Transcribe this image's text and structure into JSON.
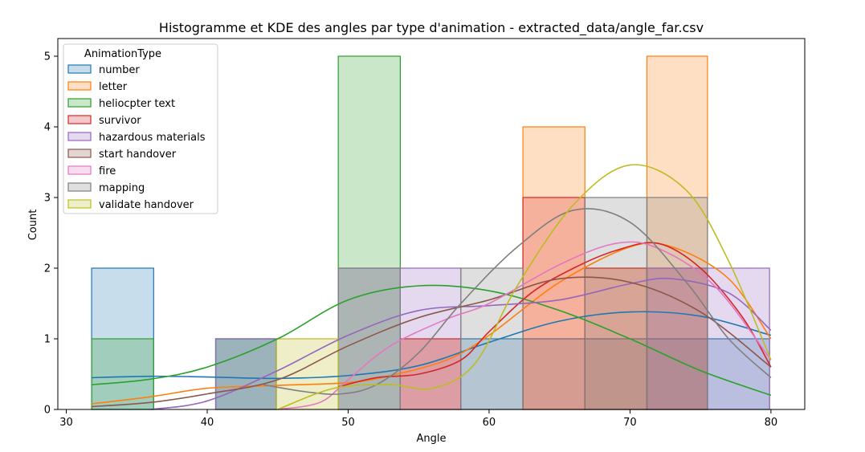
{
  "chart_data": {
    "type": "histogram",
    "title": "Histogramme et KDE des angles par type d'animation - extracted_data/angle_far.csv",
    "xlabel": "Angle",
    "ylabel": "Count",
    "xlim": [
      29.4,
      82.4
    ],
    "ylim": [
      0,
      5.25
    ],
    "xticks": [
      30,
      40,
      50,
      60,
      70,
      80
    ],
    "yticks": [
      0,
      1,
      2,
      3,
      4,
      5
    ],
    "grid": false,
    "legend": {
      "title": "AnimationType",
      "placement": "top-left"
    },
    "bin_edges": [
      31.8,
      36.2,
      40.6,
      44.9,
      49.3,
      53.7,
      58.0,
      62.4,
      66.8,
      71.2,
      75.5,
      79.9
    ],
    "series": [
      {
        "name": "number",
        "color": "#1f77b4",
        "counts": [
          2,
          0,
          1,
          0,
          0,
          0,
          1,
          1,
          1,
          1,
          1
        ],
        "kde": [
          [
            31.8,
            0.45
          ],
          [
            36,
            0.47
          ],
          [
            40,
            0.46
          ],
          [
            45,
            0.44
          ],
          [
            50,
            0.48
          ],
          [
            55,
            0.62
          ],
          [
            60,
            0.95
          ],
          [
            65,
            1.25
          ],
          [
            70,
            1.38
          ],
          [
            75,
            1.32
          ],
          [
            80,
            1.05
          ]
        ]
      },
      {
        "name": "letter",
        "color": "#ff7f0e",
        "counts": [
          0,
          0,
          0,
          0,
          0,
          1,
          0,
          4,
          2,
          5,
          0
        ],
        "kde": [
          [
            31.8,
            0.08
          ],
          [
            36,
            0.18
          ],
          [
            40,
            0.3
          ],
          [
            45,
            0.34
          ],
          [
            50,
            0.38
          ],
          [
            53,
            0.48
          ],
          [
            57,
            0.7
          ],
          [
            60,
            1.05
          ],
          [
            65,
            1.8
          ],
          [
            70,
            2.3
          ],
          [
            73,
            2.3
          ],
          [
            77,
            1.85
          ],
          [
            80,
            1.0
          ]
        ]
      },
      {
        "name": "heliocpter text",
        "color": "#2ca02c",
        "counts": [
          1,
          0,
          1,
          0,
          5,
          0,
          0,
          0,
          0,
          0,
          0
        ],
        "kde": [
          [
            31.8,
            0.35
          ],
          [
            36,
            0.43
          ],
          [
            40,
            0.6
          ],
          [
            45,
            1.0
          ],
          [
            50,
            1.55
          ],
          [
            55,
            1.75
          ],
          [
            60,
            1.68
          ],
          [
            65,
            1.4
          ],
          [
            70,
            1.0
          ],
          [
            75,
            0.55
          ],
          [
            80,
            0.2
          ]
        ]
      },
      {
        "name": "survivor",
        "color": "#d62728",
        "counts": [
          0,
          0,
          0,
          0,
          0,
          1,
          0,
          3,
          2,
          2,
          0
        ],
        "kde": [
          [
            49.3,
            0.32
          ],
          [
            52,
            0.45
          ],
          [
            55,
            0.5
          ],
          [
            58,
            0.7
          ],
          [
            60,
            1.1
          ],
          [
            63,
            1.65
          ],
          [
            66,
            2.0
          ],
          [
            69,
            2.25
          ],
          [
            72,
            2.35
          ],
          [
            75,
            2.0
          ],
          [
            78,
            1.3
          ],
          [
            80,
            0.6
          ]
        ]
      },
      {
        "name": "hazardous materials",
        "color": "#9467bd",
        "counts": [
          0,
          0,
          1,
          0,
          2,
          2,
          0,
          0,
          0,
          2,
          2
        ],
        "kde": [
          [
            36,
            0.0
          ],
          [
            40,
            0.12
          ],
          [
            45,
            0.55
          ],
          [
            50,
            1.05
          ],
          [
            55,
            1.4
          ],
          [
            60,
            1.47
          ],
          [
            65,
            1.55
          ],
          [
            70,
            1.78
          ],
          [
            73,
            1.85
          ],
          [
            77,
            1.65
          ],
          [
            80,
            1.12
          ]
        ]
      },
      {
        "name": "start handover",
        "color": "#8c564b",
        "counts": [
          0,
          0,
          0,
          0,
          0,
          0,
          0,
          0,
          0,
          0,
          0
        ],
        "kde": [
          [
            31.8,
            0.04
          ],
          [
            36,
            0.1
          ],
          [
            40,
            0.22
          ],
          [
            45,
            0.42
          ],
          [
            50,
            0.9
          ],
          [
            55,
            1.3
          ],
          [
            60,
            1.55
          ],
          [
            65,
            1.85
          ],
          [
            70,
            1.8
          ],
          [
            75,
            1.38
          ],
          [
            80,
            0.6
          ]
        ]
      },
      {
        "name": "fire",
        "color": "#e377c2",
        "counts": [
          0,
          0,
          0,
          0,
          0,
          0,
          0,
          0,
          0,
          0,
          0
        ],
        "kde": [
          [
            45,
            0.0
          ],
          [
            48,
            0.1
          ],
          [
            50,
            0.42
          ],
          [
            53,
            0.9
          ],
          [
            57,
            1.28
          ],
          [
            60,
            1.5
          ],
          [
            65,
            2.05
          ],
          [
            69,
            2.35
          ],
          [
            72,
            2.28
          ],
          [
            76,
            1.75
          ],
          [
            80,
            0.7
          ]
        ]
      },
      {
        "name": "mapping",
        "color": "#7f7f7f",
        "counts": [
          0,
          0,
          0,
          0,
          2,
          0,
          2,
          0,
          3,
          3,
          0
        ],
        "kde": [
          [
            44,
            0.35
          ],
          [
            47,
            0.25
          ],
          [
            49.5,
            0.22
          ],
          [
            52,
            0.35
          ],
          [
            55,
            0.8
          ],
          [
            58,
            1.5
          ],
          [
            62,
            2.3
          ],
          [
            66,
            2.82
          ],
          [
            70,
            2.65
          ],
          [
            74,
            1.8
          ],
          [
            77,
            1.0
          ],
          [
            80,
            0.45
          ]
        ]
      },
      {
        "name": "validate handover",
        "color": "#bcbd22",
        "counts": [
          0,
          0,
          0,
          1,
          0,
          0,
          0,
          0,
          0,
          0,
          0
        ],
        "kde": [
          [
            45,
            0.0
          ],
          [
            49,
            0.3
          ],
          [
            53,
            0.35
          ],
          [
            56,
            0.3
          ],
          [
            59,
            0.65
          ],
          [
            62,
            1.75
          ],
          [
            66,
            2.9
          ],
          [
            70,
            3.46
          ],
          [
            74,
            3.1
          ],
          [
            77,
            2.1
          ],
          [
            80,
            0.7
          ]
        ]
      }
    ]
  }
}
